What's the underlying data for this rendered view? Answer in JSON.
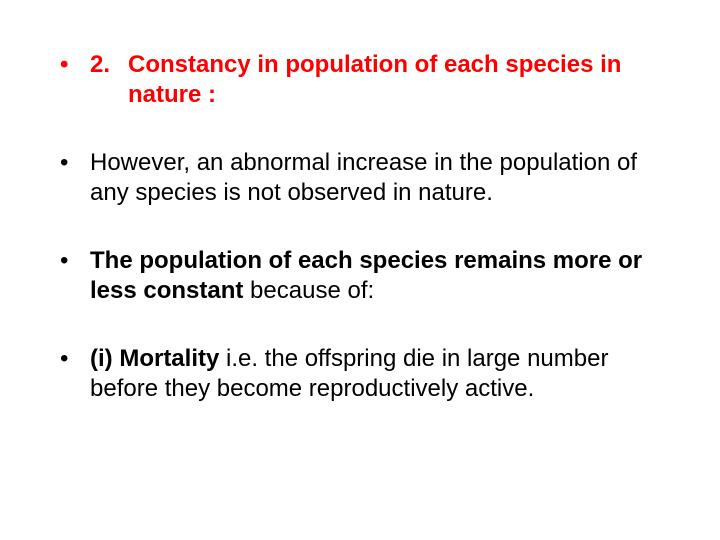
{
  "colors": {
    "heading": "#ff0000",
    "body": "#000000",
    "background": "#ffffff"
  },
  "typography": {
    "font_family": "Arial",
    "font_size_pt": 18,
    "line_height": 1.25
  },
  "items": [
    {
      "bullet": "•",
      "number": "2.",
      "segments": [
        {
          "text": "Constancy in population of each species in nature :",
          "bold": true,
          "color": "#ff0000"
        }
      ]
    },
    {
      "bullet": "•",
      "segments": [
        {
          "text": "However, an abnormal increase in the population of any species is not observed in nature.",
          "bold": false,
          "color": "#000000"
        }
      ]
    },
    {
      "bullet": "•",
      "segments": [
        {
          "text": "The population of each species remains more or less constant",
          "bold": true,
          "color": "#000000"
        },
        {
          "text": " because of:",
          "bold": false,
          "color": "#000000"
        }
      ]
    },
    {
      "bullet": "•",
      "segments": [
        {
          "text": "(i) Mortality",
          "bold": true,
          "color": "#000000"
        },
        {
          "text": " i.e. the offspring die in large number before they become reproductively active.",
          "bold": false,
          "color": "#000000"
        }
      ]
    }
  ]
}
